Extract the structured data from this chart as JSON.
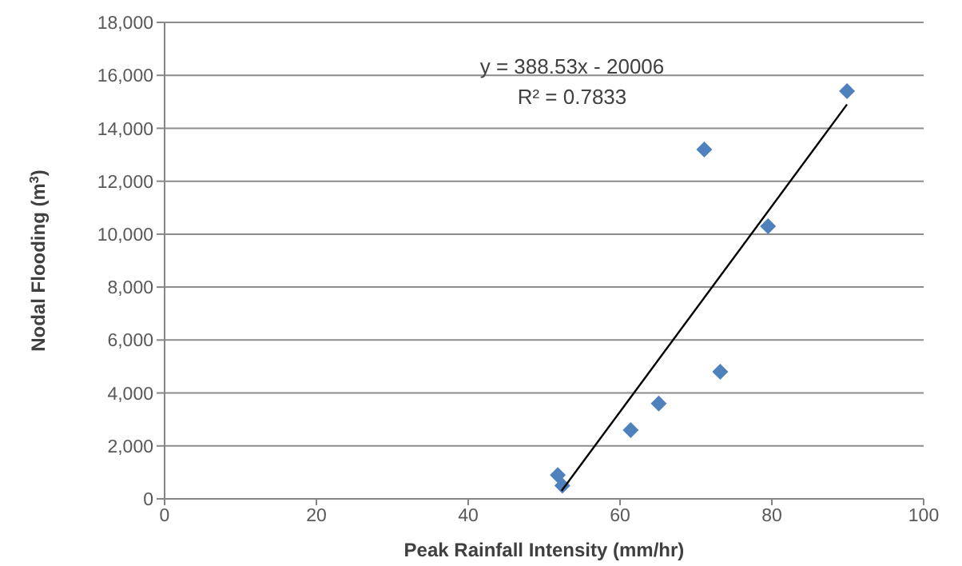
{
  "chart_data": {
    "type": "scatter",
    "xlabel": "Peak Rainfall Intensity (mm/hr)",
    "ylabel": "Nodal Flooding (m$^{3}$)",
    "xlim": [
      0,
      100
    ],
    "xticks": [
      0,
      20,
      40,
      60,
      80,
      100
    ],
    "ylim": [
      0,
      18000
    ],
    "yticks": [
      {
        "value": 0,
        "label": "0"
      },
      {
        "value": 2000,
        "label": "2,000"
      },
      {
        "value": 4000,
        "label": "4,000"
      },
      {
        "value": 6000,
        "label": "6,000"
      },
      {
        "value": 8000,
        "label": "8,000"
      },
      {
        "value": 10000,
        "label": "10,000"
      },
      {
        "value": 12000,
        "label": "12,000"
      },
      {
        "value": 14000,
        "label": "14,000"
      },
      {
        "value": 16000,
        "label": "16,000"
      },
      {
        "value": 18000,
        "label": "18,000"
      }
    ],
    "grid": "y",
    "series": [
      {
        "marker": "diamond",
        "color": "#4f81bd",
        "x": [
          51.8,
          52.4,
          61.4,
          65.1,
          71.1,
          73.2,
          79.5,
          89.9
        ],
        "values": [
          900,
          500,
          2600,
          3600,
          13200,
          4800,
          10300,
          15400
        ]
      },
      {
        "type": "line",
        "marker": "none",
        "color": "#000000",
        "x": [
          52.3,
          89.9
        ],
        "values": [
          300,
          14900
        ]
      }
    ],
    "annotations": [
      "y = 388.53x - 20006",
      "R² = 0.7833"
    ]
  }
}
